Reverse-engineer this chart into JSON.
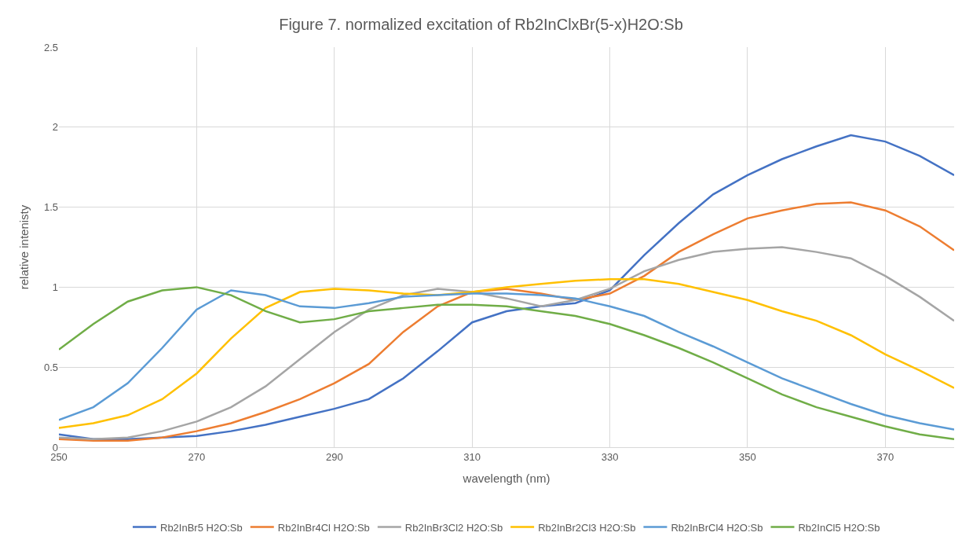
{
  "chart_data": {
    "type": "line",
    "title": "Figure 7. normalized excitation of Rb2InClxBr(5-x)H2O:Sb",
    "xlabel": "wavelength (nm)",
    "ylabel": "relative intenisty",
    "x": [
      250,
      255,
      260,
      265,
      270,
      275,
      280,
      285,
      290,
      295,
      300,
      305,
      310,
      315,
      320,
      325,
      330,
      335,
      340,
      345,
      350,
      355,
      360,
      365,
      370,
      375,
      380
    ],
    "series": [
      {
        "name": "Rb2InBr5 H2O:Sb",
        "color": "#4472c4",
        "values": [
          0.08,
          0.05,
          0.05,
          0.06,
          0.07,
          0.1,
          0.14,
          0.19,
          0.24,
          0.3,
          0.43,
          0.6,
          0.78,
          0.85,
          0.88,
          0.9,
          0.98,
          1.2,
          1.4,
          1.58,
          1.7,
          1.8,
          1.88,
          1.95,
          1.91,
          1.82,
          1.7
        ]
      },
      {
        "name": "Rb2InBr4Cl H2O:Sb",
        "color": "#ed7d31",
        "values": [
          0.05,
          0.04,
          0.04,
          0.06,
          0.1,
          0.15,
          0.22,
          0.3,
          0.4,
          0.52,
          0.72,
          0.88,
          0.97,
          0.99,
          0.96,
          0.92,
          0.96,
          1.07,
          1.22,
          1.33,
          1.43,
          1.48,
          1.52,
          1.53,
          1.48,
          1.38,
          1.23
        ]
      },
      {
        "name": "Rb2InBr3Cl2 H2O:Sb",
        "color": "#a5a5a5",
        "values": [
          0.06,
          0.05,
          0.06,
          0.1,
          0.16,
          0.25,
          0.38,
          0.55,
          0.72,
          0.86,
          0.95,
          0.99,
          0.97,
          0.93,
          0.88,
          0.92,
          0.99,
          1.1,
          1.17,
          1.22,
          1.24,
          1.25,
          1.22,
          1.18,
          1.07,
          0.94,
          0.79
        ]
      },
      {
        "name": "Rb2InBr2Cl3 H2O:Sb",
        "color": "#ffc000",
        "values": [
          0.12,
          0.15,
          0.2,
          0.3,
          0.46,
          0.68,
          0.87,
          0.97,
          0.99,
          0.98,
          0.96,
          0.95,
          0.97,
          1.0,
          1.02,
          1.04,
          1.05,
          1.05,
          1.02,
          0.97,
          0.92,
          0.85,
          0.79,
          0.7,
          0.58,
          0.48,
          0.37
        ]
      },
      {
        "name": "Rb2InBrCl4 H2O:Sb",
        "color": "#5b9bd5",
        "values": [
          0.17,
          0.25,
          0.4,
          0.62,
          0.86,
          0.98,
          0.95,
          0.88,
          0.87,
          0.9,
          0.94,
          0.95,
          0.96,
          0.96,
          0.95,
          0.93,
          0.88,
          0.82,
          0.72,
          0.63,
          0.53,
          0.43,
          0.35,
          0.27,
          0.2,
          0.15,
          0.11
        ]
      },
      {
        "name": "Rb2InCl5 H2O:Sb",
        "color": "#70ad47",
        "values": [
          0.61,
          0.77,
          0.91,
          0.98,
          1.0,
          0.95,
          0.85,
          0.78,
          0.8,
          0.85,
          0.87,
          0.89,
          0.89,
          0.88,
          0.85,
          0.82,
          0.77,
          0.7,
          0.62,
          0.53,
          0.43,
          0.33,
          0.25,
          0.19,
          0.13,
          0.08,
          0.05
        ]
      }
    ],
    "xlim": [
      250,
      380
    ],
    "xticks": [
      250,
      270,
      290,
      310,
      330,
      350,
      370
    ],
    "ylim": [
      0,
      2.5
    ],
    "yticks": [
      0,
      0.5,
      1,
      1.5,
      2,
      2.5
    ],
    "grid": true,
    "legend": "bottom",
    "marker": "none",
    "line_style": "solid"
  }
}
